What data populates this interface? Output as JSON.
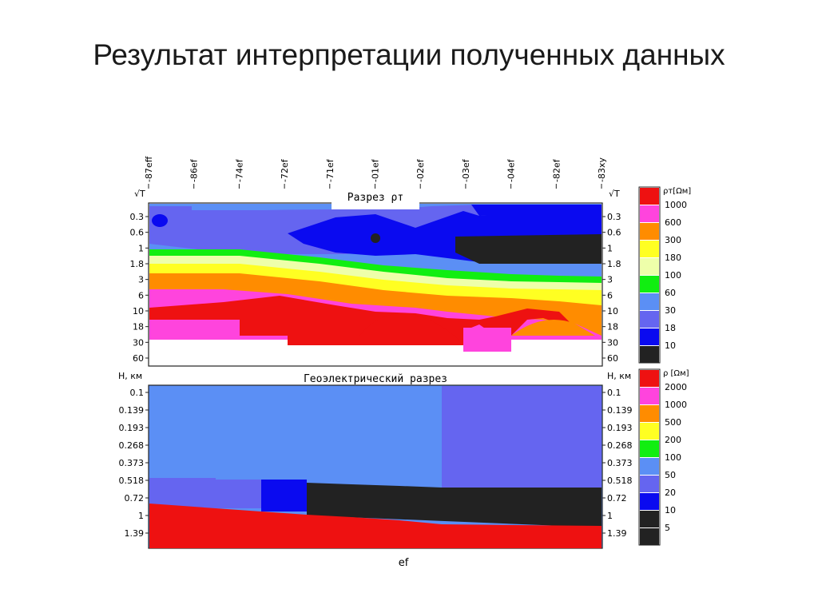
{
  "slide": {
    "title": "Результат интерпретации полученных данных"
  },
  "palette": {
    "red": "#ee1111",
    "magenta": "#ff44dd",
    "orange": "#ff8c00",
    "yellow": "#ffff22",
    "lightyellow": "#eeffaa",
    "green": "#11ee11",
    "lightblue": "#5b8ff5",
    "periwinkle": "#6565f0",
    "blue": "#0a0af0",
    "dark": "#222222"
  },
  "station_labels": [
    "-87eff",
    "-86ef",
    "-74ef",
    "-72ef",
    "-71ef",
    "-01ef",
    "-02ef",
    "-03ef",
    "-04ef",
    "-82ef",
    "-83xy"
  ],
  "top_panel": {
    "title": "Разрез ρт",
    "axis_label": "√T",
    "axis_ticks": [
      "0.3",
      "0.6",
      "1",
      "1.8",
      "3",
      "6",
      "10",
      "18",
      "30",
      "60"
    ],
    "legend_title": "ρт[Ωм]",
    "legend": [
      {
        "label": "1000",
        "color": "#ee1111"
      },
      {
        "label": "600",
        "color": "#ff44dd"
      },
      {
        "label": "300",
        "color": "#ff8c00"
      },
      {
        "label": "180",
        "color": "#ffff22"
      },
      {
        "label": "100",
        "color": "#eeffaa"
      },
      {
        "label": "60",
        "color": "#11ee11"
      },
      {
        "label": "30",
        "color": "#5b8ff5"
      },
      {
        "label": "18",
        "color": "#6565f0"
      },
      {
        "label": "10",
        "color": "#0a0af0"
      },
      {
        "label": "",
        "color": "#222222"
      }
    ]
  },
  "bottom_panel": {
    "title": "Геоэлектрический разрез",
    "axis_label": "H, км",
    "axis_ticks": [
      "0.1",
      "0.139",
      "0.193",
      "0.268",
      "0.373",
      "0.518",
      "0.72",
      "1",
      "1.39"
    ],
    "x_label": "ef",
    "legend_title": "ρ [Ωм]",
    "legend": [
      {
        "label": "2000",
        "color": "#ee1111"
      },
      {
        "label": "1000",
        "color": "#ff44dd"
      },
      {
        "label": "500",
        "color": "#ff8c00"
      },
      {
        "label": "200",
        "color": "#ffff22"
      },
      {
        "label": "100",
        "color": "#11ee11"
      },
      {
        "label": "50",
        "color": "#5b8ff5"
      },
      {
        "label": "20",
        "color": "#6565f0"
      },
      {
        "label": "10",
        "color": "#0a0af0"
      },
      {
        "label": "5",
        "color": "#222222"
      },
      {
        "label": "",
        "color": "#222222"
      }
    ]
  }
}
